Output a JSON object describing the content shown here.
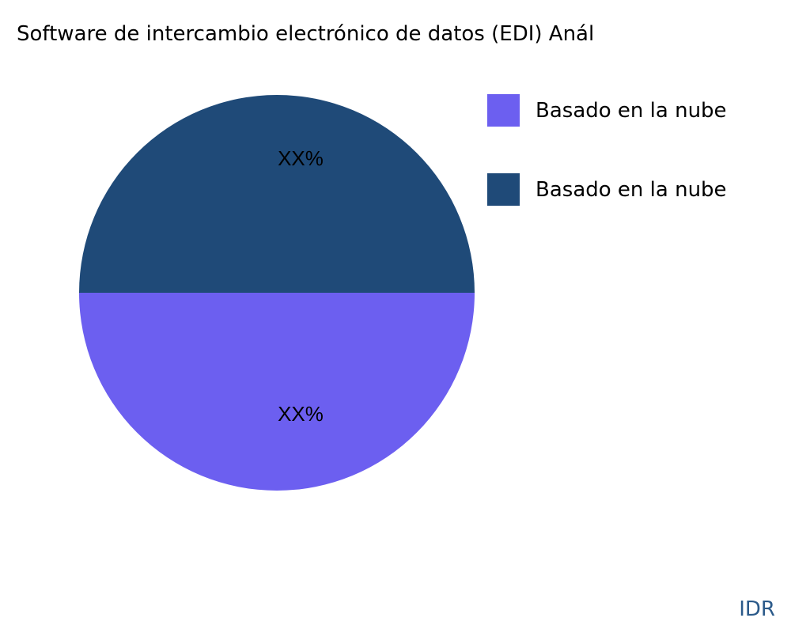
{
  "chart_data": {
    "type": "pie",
    "title": "Software de intercambio electrónico de datos (EDI) Anál",
    "slices": [
      {
        "label": "Basado en la nube",
        "value": 50,
        "text": "XX%",
        "color": "#6c5ff0"
      },
      {
        "label": "Basado en la nube",
        "value": 50,
        "text": "XX%",
        "color": "#1f4a78"
      }
    ],
    "legend_position": "right"
  },
  "brand": "IDR"
}
